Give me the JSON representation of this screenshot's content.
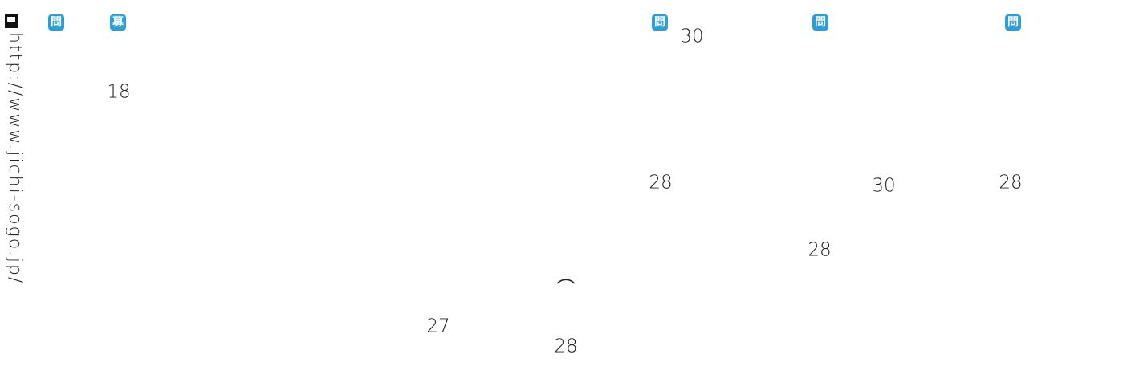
{
  "sidebar": {
    "url": "http://www.jichi-sogo.jp/"
  },
  "icons": [
    "問",
    "募",
    "問",
    "問",
    "問"
  ],
  "labels": [
    "30",
    "18",
    "28",
    "30",
    "28",
    "28",
    "︵",
    "27",
    "28"
  ]
}
